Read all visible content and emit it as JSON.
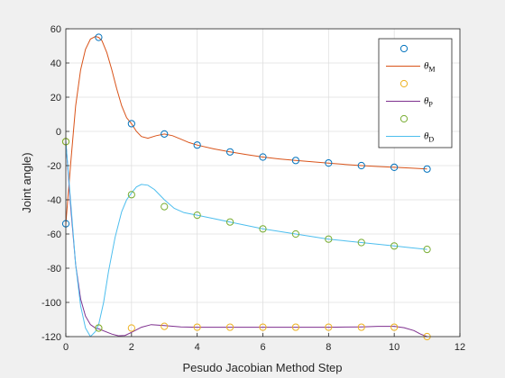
{
  "chart_data": {
    "type": "line",
    "title": "",
    "xlabel": "Pesudo Jacobian Method Step",
    "ylabel": "Joint angle)",
    "xlim": [
      0,
      12
    ],
    "ylim": [
      -120,
      60
    ],
    "xticks": [
      0,
      2,
      4,
      6,
      8,
      10,
      12
    ],
    "yticks": [
      -120,
      -100,
      -80,
      -60,
      -40,
      -20,
      0,
      20,
      40,
      60
    ],
    "grid": true,
    "legend_position": "top-right",
    "series": [
      {
        "name": "θM",
        "legend_symbol": "θ",
        "legend_sub": "M",
        "marker_color": "#0072BD",
        "line_color": "#D95319",
        "x": [
          0,
          1,
          2,
          3,
          4,
          5,
          6,
          7,
          8,
          9,
          10,
          11
        ],
        "y": [
          -54,
          55,
          4.5,
          -1.5,
          -8,
          -12,
          -15,
          -17,
          -18.5,
          -20,
          -21,
          -22
        ],
        "curve_x": [
          0,
          0.15,
          0.3,
          0.45,
          0.6,
          0.75,
          0.9,
          1.0,
          1.1,
          1.25,
          1.4,
          1.55,
          1.7,
          1.85,
          2.0,
          2.15,
          2.3,
          2.5,
          2.75,
          3.0,
          3.25,
          3.5,
          3.75,
          4.0,
          4.5,
          5.0,
          5.5,
          6.0,
          6.5,
          7.0,
          7.5,
          8.0,
          8.5,
          9.0,
          9.5,
          10.0,
          10.5,
          11.0
        ],
        "curve_y": [
          -54,
          -18,
          15,
          36,
          48,
          54,
          55.5,
          55,
          53,
          46,
          36,
          25,
          15,
          8,
          4.5,
          0,
          -3,
          -4,
          -2.5,
          -1.5,
          -2.5,
          -4.5,
          -6.5,
          -8,
          -10.2,
          -12,
          -13.6,
          -15,
          -16.1,
          -17,
          -17.8,
          -18.5,
          -19.3,
          -20,
          -20.5,
          -21,
          -21.5,
          -22
        ]
      },
      {
        "name": "θP",
        "legend_symbol": "θ",
        "legend_sub": "P",
        "marker_color": "#EDB120",
        "line_color": "#7E2F8E",
        "x": [
          0,
          1,
          2,
          3,
          4,
          5,
          6,
          7,
          8,
          9,
          10,
          11
        ],
        "y": [
          -6,
          -115,
          -115,
          -114,
          -114.5,
          -114.5,
          -114.5,
          -114.5,
          -114.5,
          -114.5,
          -114.5,
          -120
        ],
        "curve_x": [
          0,
          0.15,
          0.3,
          0.45,
          0.6,
          0.75,
          0.9,
          1.0,
          1.2,
          1.4,
          1.6,
          1.8,
          2.0,
          2.3,
          2.6,
          3.0,
          3.5,
          4.0,
          5.0,
          6.0,
          7.0,
          8.0,
          9.0,
          9.5,
          10.0,
          10.3,
          10.6,
          10.8,
          11.0
        ],
        "curve_y": [
          -6,
          -45,
          -78,
          -98,
          -108,
          -113,
          -115,
          -115.5,
          -117,
          -118.5,
          -119.5,
          -119.3,
          -117.5,
          -114.5,
          -113,
          -113.5,
          -114.3,
          -114.5,
          -114.5,
          -114.5,
          -114.5,
          -114.5,
          -114.3,
          -114,
          -114,
          -114.8,
          -116.5,
          -118.5,
          -120
        ]
      },
      {
        "name": "θD",
        "legend_symbol": "θ",
        "legend_sub": "D",
        "marker_color": "#77AC30",
        "line_color": "#4DBEEE",
        "x": [
          0,
          1,
          2,
          3,
          4,
          5,
          6,
          7,
          8,
          9,
          10,
          11
        ],
        "y": [
          -6,
          -115,
          -37,
          -44,
          -49,
          -53,
          -57,
          -60,
          -63,
          -65,
          -67,
          -69
        ],
        "curve_x": [
          0,
          0.15,
          0.3,
          0.45,
          0.6,
          0.75,
          0.9,
          1.0,
          1.15,
          1.3,
          1.5,
          1.7,
          1.85,
          2.0,
          2.15,
          2.3,
          2.5,
          2.7,
          3.0,
          3.3,
          3.6,
          4.0,
          4.5,
          5.0,
          5.5,
          6.0,
          6.5,
          7.0,
          7.5,
          8.0,
          8.5,
          9.0,
          9.5,
          10.0,
          10.5,
          11.0
        ],
        "curve_y": [
          -6,
          -42,
          -78,
          -102,
          -115,
          -120,
          -117,
          -113,
          -100,
          -82,
          -62,
          -47,
          -40,
          -36,
          -32.5,
          -31,
          -31.5,
          -34,
          -40,
          -45,
          -47.5,
          -49,
          -51,
          -53,
          -55,
          -57,
          -58.5,
          -60,
          -61.5,
          -63,
          -64,
          -65,
          -66,
          -67,
          -68,
          -69
        ]
      }
    ]
  }
}
